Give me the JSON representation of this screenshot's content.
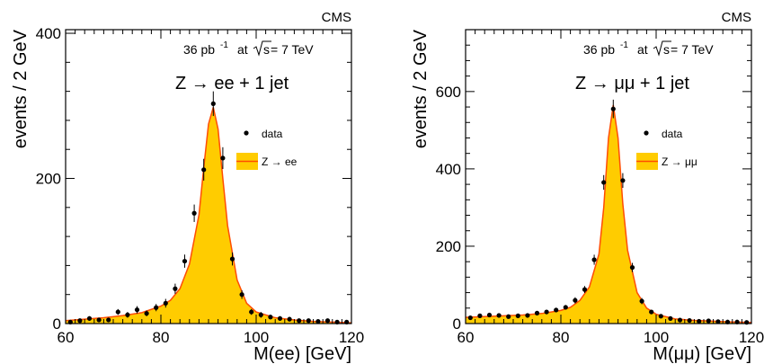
{
  "chart_data": [
    {
      "type": "line",
      "experiment_label": "CMS",
      "lumi_value": "36 pb",
      "lumi_exp": "-1",
      "energy_at": "at",
      "energy_s": "s",
      "energy_rest": " = 7 TeV",
      "process_title": "Z → ee + 1 jet",
      "xlabel": "M(ee) [GeV]",
      "ylabel": "events / 2 GeV",
      "xlim": [
        60,
        120
      ],
      "ylim": [
        0,
        405
      ],
      "xticks": [
        60,
        80,
        100,
        120
      ],
      "yticks": [
        0,
        200,
        400
      ],
      "legend": [
        "data",
        "Z → ee"
      ],
      "legend_position": "right",
      "series": [
        {
          "name": "data",
          "kind": "points",
          "x": [
            61,
            63,
            65,
            67,
            69,
            71,
            73,
            75,
            77,
            79,
            81,
            83,
            85,
            87,
            89,
            91,
            93,
            95,
            97,
            99,
            101,
            103,
            105,
            107,
            109,
            111,
            113,
            115,
            117,
            119
          ],
          "y": [
            2,
            4,
            7,
            5,
            5,
            16,
            12,
            19,
            14,
            22,
            28,
            48,
            86,
            152,
            212,
            303,
            228,
            89,
            40,
            16,
            12,
            9,
            7,
            6,
            4,
            4,
            3,
            4,
            2,
            2
          ],
          "err": [
            2,
            3,
            3,
            3,
            3,
            4,
            4,
            5,
            4,
            5,
            6,
            7,
            9,
            12,
            15,
            17,
            15,
            9,
            6,
            4,
            4,
            3,
            3,
            3,
            2,
            2,
            2,
            2,
            2,
            2
          ]
        },
        {
          "name": "Z → ee",
          "kind": "filled",
          "x": [
            60,
            64,
            68,
            72,
            76,
            80,
            82,
            84,
            86,
            88,
            89,
            90,
            91,
            92,
            93,
            94,
            96,
            98,
            100,
            104,
            108,
            112,
            116,
            120
          ],
          "y": [
            4,
            6,
            8,
            11,
            15,
            24,
            32,
            48,
            82,
            150,
            215,
            275,
            298,
            268,
            200,
            135,
            60,
            28,
            16,
            8,
            5,
            3,
            2,
            1
          ]
        }
      ],
      "colors": {
        "fill": "#ffcc00",
        "line": "#ff4d00",
        "points": "#000000"
      }
    },
    {
      "type": "line",
      "experiment_label": "CMS",
      "lumi_value": "36 pb",
      "lumi_exp": "-1",
      "energy_at": "at",
      "energy_s": "s",
      "energy_rest": " = 7 TeV",
      "process_title": "Z → μμ + 1 jet",
      "xlabel": "M(μμ) [GeV]",
      "ylabel": "events / 2 GeV",
      "xlim": [
        60,
        120
      ],
      "ylim": [
        0,
        760
      ],
      "xticks": [
        60,
        80,
        100,
        120
      ],
      "yticks": [
        0,
        200,
        400,
        600
      ],
      "legend": [
        "data",
        "Z → μμ"
      ],
      "legend_position": "right",
      "series": [
        {
          "name": "data",
          "kind": "points",
          "x": [
            61,
            63,
            65,
            67,
            69,
            71,
            73,
            75,
            77,
            79,
            81,
            83,
            85,
            87,
            89,
            91,
            93,
            95,
            97,
            99,
            101,
            103,
            105,
            107,
            109,
            111,
            113,
            115,
            117,
            119
          ],
          "y": [
            15,
            20,
            22,
            21,
            18,
            20,
            21,
            27,
            30,
            35,
            42,
            60,
            88,
            165,
            365,
            555,
            370,
            145,
            58,
            30,
            19,
            13,
            9,
            8,
            6,
            7,
            5,
            4,
            4,
            3
          ],
          "err": [
            4,
            4,
            5,
            5,
            4,
            4,
            5,
            5,
            5,
            6,
            6,
            8,
            9,
            13,
            19,
            24,
            19,
            12,
            8,
            5,
            4,
            4,
            3,
            3,
            3,
            3,
            2,
            2,
            2,
            2
          ]
        },
        {
          "name": "Z → μμ",
          "kind": "filled",
          "x": [
            60,
            64,
            68,
            72,
            76,
            80,
            82,
            84,
            86,
            88,
            89,
            90,
            91,
            92,
            93,
            94,
            96,
            98,
            100,
            104,
            108,
            112,
            116,
            120
          ],
          "y": [
            16,
            18,
            20,
            22,
            26,
            34,
            42,
            60,
            95,
            180,
            300,
            480,
            565,
            480,
            310,
            190,
            80,
            40,
            24,
            12,
            8,
            6,
            4,
            3
          ]
        }
      ],
      "colors": {
        "fill": "#ffcc00",
        "line": "#ff4d00",
        "points": "#000000"
      }
    }
  ]
}
